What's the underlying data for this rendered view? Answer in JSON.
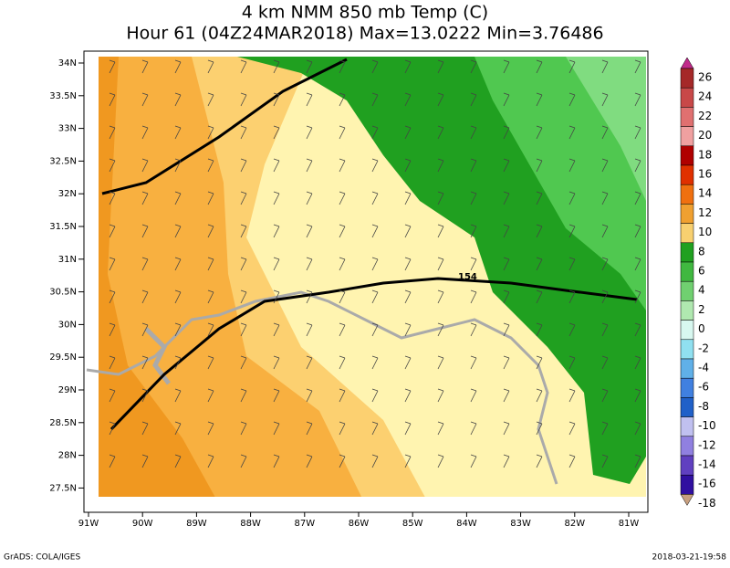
{
  "title": {
    "line1": "4 km NMM 850 mb Temp (C)",
    "line2": "Hour 61 (04Z24MAR2018) Max=13.0222 Min=3.76486"
  },
  "map": {
    "lat_labels": [
      "34N",
      "33.5N",
      "33N",
      "32.5N",
      "32N",
      "31.5N",
      "31N",
      "30.5N",
      "30N",
      "29.5N",
      "29N",
      "28.5N",
      "28N",
      "27.5N"
    ],
    "lon_labels": [
      "91W",
      "90W",
      "89W",
      "88W",
      "87W",
      "86W",
      "85W",
      "84W",
      "83W",
      "82W",
      "81W"
    ],
    "road_label": "154"
  },
  "colorbar": {
    "labels": [
      26,
      24,
      22,
      20,
      18,
      16,
      14,
      12,
      10,
      8,
      6,
      4,
      2,
      0,
      -2,
      -4,
      -6,
      -8,
      -10,
      -12,
      -14,
      -16,
      -18
    ],
    "colors": [
      "#c02a8a",
      "#a52828",
      "#c84848",
      "#e07070",
      "#f0a0a0",
      "#b00000",
      "#e03000",
      "#f07010",
      "#f0a030",
      "#f8d070",
      "#20a020",
      "#40b840",
      "#70d070",
      "#b0e8b0",
      "#d8f8f0",
      "#90e0f0",
      "#60b0e8",
      "#4080e0",
      "#2060c8",
      "#c0c0f0",
      "#9080e0",
      "#6040c0",
      "#3010a0",
      "#c8a080"
    ]
  },
  "footer": {
    "left": "GrADS: COLA/IGES",
    "right": "2018-03-21-19:58"
  }
}
